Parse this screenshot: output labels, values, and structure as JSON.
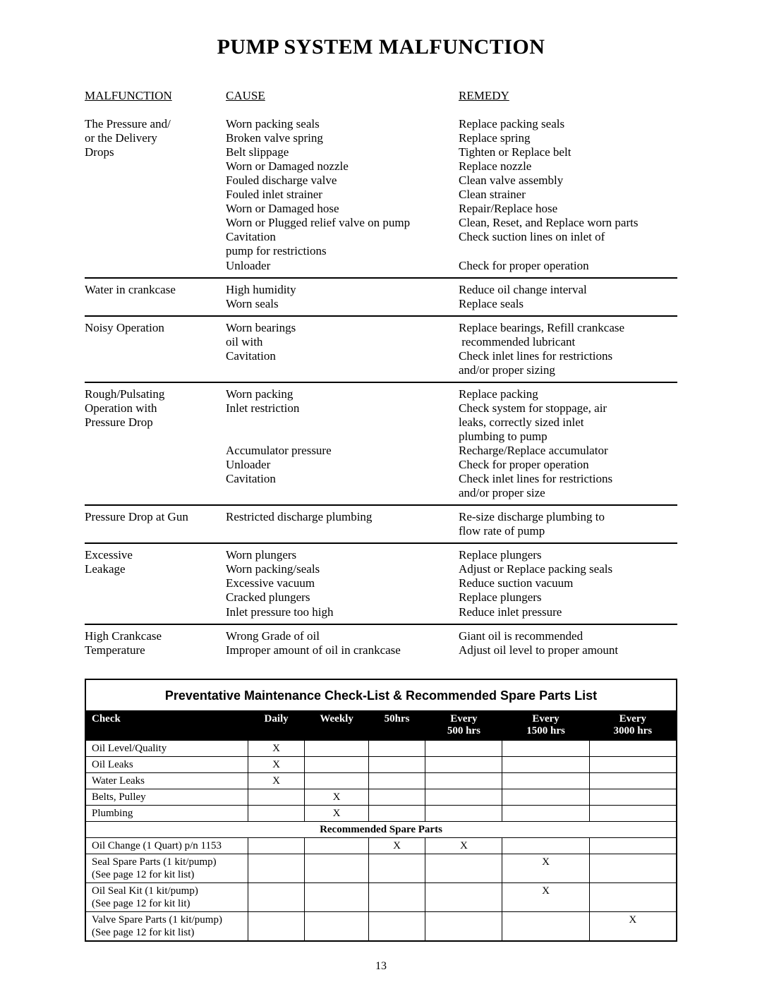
{
  "title": "PUMP SYSTEM MALFUNCTION",
  "page_number": "13",
  "headers": {
    "malfunction": "MALFUNCTION",
    "cause": "CAUSE",
    "remedy": "REMEDY"
  },
  "sections": [
    {
      "malfunction": [
        "The Pressure and/",
        "or the Delivery",
        "Drops"
      ],
      "cause": [
        "Worn packing seals",
        "Broken valve spring",
        "Belt slippage",
        "Worn or Damaged nozzle",
        "Fouled discharge valve",
        "Fouled inlet strainer",
        "Worn or Damaged hose",
        "Worn or Plugged relief valve on pump",
        "Cavitation",
        "pump for restrictions",
        "Unloader"
      ],
      "remedy": [
        "Replace packing seals",
        "Replace spring",
        "Tighten or Replace belt",
        "Replace nozzle",
        "Clean valve assembly",
        "Clean strainer",
        "Repair/Replace hose",
        "Clean, Reset, and Replace worn parts",
        "Check suction lines on inlet of",
        "",
        "Check for proper operation"
      ]
    },
    {
      "malfunction": [
        "Water in crankcase"
      ],
      "cause": [
        "High humidity",
        "Worn seals"
      ],
      "remedy": [
        "Reduce oil change interval",
        "Replace seals"
      ]
    },
    {
      "malfunction": [
        "Noisy Operation"
      ],
      "cause": [
        "Worn bearings",
        "oil with",
        "Cavitation"
      ],
      "remedy": [
        "Replace bearings, Refill crankcase",
        " recommended lubricant",
        "Check inlet lines for restrictions",
        "and/or proper sizing"
      ]
    },
    {
      "malfunction": [
        "Rough/Pulsating",
        "Operation with",
        "Pressure Drop"
      ],
      "cause": [
        "Worn packing",
        "Inlet restriction",
        "",
        "",
        "Accumulator pressure",
        "Unloader",
        "Cavitation"
      ],
      "remedy": [
        "Replace packing",
        "Check system for stoppage, air",
        "leaks, correctly sized inlet",
        "plumbing to pump",
        "Recharge/Replace accumulator",
        "Check for proper operation",
        "Check inlet lines for restrictions",
        "and/or proper size"
      ]
    },
    {
      "malfunction": [
        "Pressure Drop at Gun"
      ],
      "cause": [
        "Restricted discharge plumbing"
      ],
      "remedy": [
        "Re-size discharge plumbing to",
        "flow rate of pump"
      ]
    },
    {
      "malfunction": [
        "Excessive",
        "Leakage"
      ],
      "cause": [
        "Worn plungers",
        "Worn packing/seals",
        "Excessive vacuum",
        "Cracked plungers",
        "Inlet pressure too high"
      ],
      "remedy": [
        "Replace plungers",
        "Adjust or Replace packing seals",
        "Reduce suction vacuum",
        "Replace plungers",
        "Reduce inlet pressure"
      ]
    },
    {
      "malfunction": [
        "High Crankcase",
        "Temperature"
      ],
      "cause": [
        "Wrong Grade of oil",
        "Improper amount of oil in crankcase"
      ],
      "remedy": [
        "Giant oil is recommended",
        "Adjust oil level to proper amount"
      ]
    }
  ],
  "pm": {
    "title": "Preventative Maintenance Check-List & Recommended Spare Parts List",
    "columns": [
      "Check",
      "Daily",
      "Weekly",
      "50hrs",
      "Every 500 hrs",
      "Every 1500 hrs",
      "Every 3000 hrs"
    ],
    "col_sub": [
      "",
      "",
      "",
      "",
      "500 hrs",
      "1500 hrs",
      "3000 hrs"
    ],
    "col_top": [
      "Check",
      "Daily",
      "Weekly",
      "50hrs",
      "Every",
      "Every",
      "Every"
    ],
    "rows1": [
      {
        "label": "Oil Level/Quality",
        "marks": [
          "X",
          "",
          "",
          "",
          "",
          ""
        ]
      },
      {
        "label": "Oil Leaks",
        "marks": [
          "X",
          "",
          "",
          "",
          "",
          ""
        ]
      },
      {
        "label": "Water Leaks",
        "marks": [
          "X",
          "",
          "",
          "",
          "",
          ""
        ]
      },
      {
        "label": "Belts, Pulley",
        "marks": [
          "",
          "X",
          "",
          "",
          "",
          ""
        ]
      },
      {
        "label": "Plumbing",
        "marks": [
          "",
          "X",
          "",
          "",
          "",
          ""
        ]
      }
    ],
    "subheader": "Recommended Spare Parts",
    "rows2": [
      {
        "label": "Oil Change (1 Quart) p/n 1153",
        "sublabel": "",
        "marks": [
          "",
          "",
          "X",
          "X",
          "",
          ""
        ]
      },
      {
        "label": "Seal Spare Parts (1 kit/pump)",
        "sublabel": "(See page 12 for kit list)",
        "marks": [
          "",
          "",
          "",
          "",
          "X",
          ""
        ]
      },
      {
        "label": "Oil Seal Kit (1 kit/pump)",
        "sublabel": "(See page 12 for kit lit)",
        "marks": [
          "",
          "",
          "",
          "",
          "X",
          ""
        ]
      },
      {
        "label": "Valve Spare Parts (1 kit/pump)",
        "sublabel": "(See page 12 for kit list)",
        "marks": [
          "",
          "",
          "",
          "",
          "",
          "X"
        ]
      }
    ]
  }
}
